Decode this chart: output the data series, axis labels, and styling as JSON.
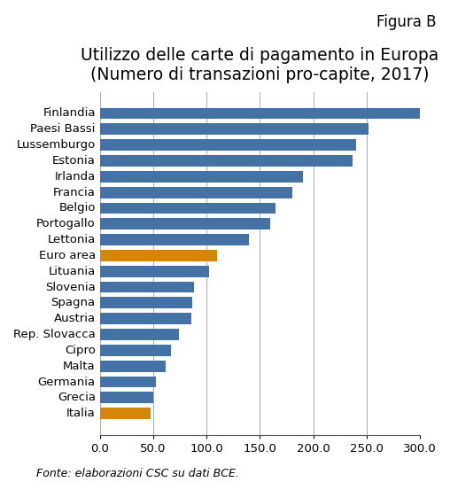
{
  "title_line1": "Utilizzo delle carte di pagamento in Europa",
  "title_line2": "(Numero di transazioni pro-capite, 2017)",
  "figura_label": "Figura B",
  "categories": [
    "Finlandia",
    "Paesi Bassi",
    "Lussemburgo",
    "Estonia",
    "Irlanda",
    "Francia",
    "Belgio",
    "Portogallo",
    "Lettonia",
    "Euro area",
    "Lituania",
    "Slovenia",
    "Spagna",
    "Austria",
    "Rep. Slovacca",
    "Cipro",
    "Malta",
    "Germania",
    "Grecia",
    "Italia"
  ],
  "values": [
    300,
    252,
    240,
    237,
    190,
    180,
    165,
    160,
    140,
    110,
    102,
    88,
    87,
    86,
    74,
    67,
    62,
    53,
    50,
    48
  ],
  "bar_colors": [
    "#4472a6",
    "#4472a6",
    "#4472a6",
    "#4472a6",
    "#4472a6",
    "#4472a6",
    "#4472a6",
    "#4472a6",
    "#4472a6",
    "#d4860b",
    "#4472a6",
    "#4472a6",
    "#4472a6",
    "#4472a6",
    "#4472a6",
    "#4472a6",
    "#4472a6",
    "#4472a6",
    "#4472a6",
    "#d4860b"
  ],
  "xlim": [
    0,
    300
  ],
  "xticks": [
    0.0,
    50.0,
    100.0,
    150.0,
    200.0,
    250.0,
    300.0
  ],
  "fonte": "Fonte: elaborazioni CSC su dati BCE.",
  "background_color": "#ffffff",
  "bar_height": 0.72,
  "title_fontsize": 13.5,
  "tick_fontsize": 9.5,
  "fonte_fontsize": 9,
  "figura_fontsize": 12
}
